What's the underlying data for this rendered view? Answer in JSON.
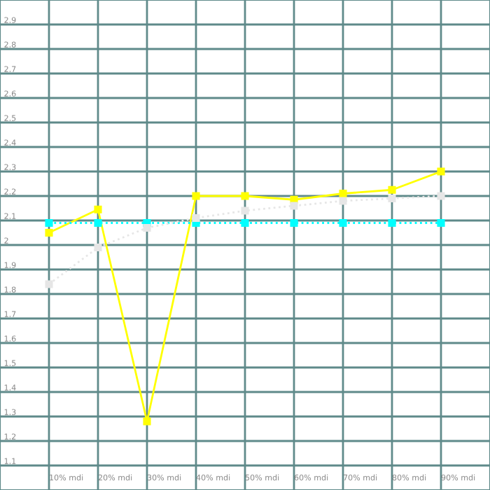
{
  "chart_data": {
    "type": "line",
    "categories": [
      "10% mdi",
      "20% mdi",
      "30% mdi",
      "40% mdi",
      "50% mdi",
      "60% mdi",
      "70% mdi",
      "80% mdi",
      "90% mdi"
    ],
    "series": [
      {
        "color": "#ffff00",
        "line_style": "solid",
        "values": [
          2.05,
          2.145,
          1.28,
          2.2,
          2.2,
          2.185,
          2.21,
          2.225,
          2.3
        ]
      },
      {
        "color": "#00ffff",
        "line_style": "dotted",
        "values": [
          2.09,
          2.09,
          2.09,
          2.09,
          2.09,
          2.09,
          2.09,
          2.09,
          2.09
        ]
      },
      {
        "color": "#e6e6e6",
        "line_style": "dotted",
        "values": [
          1.84,
          1.99,
          2.07,
          2.11,
          2.14,
          2.16,
          2.18,
          2.19,
          2.2
        ]
      }
    ],
    "ylim": [
      1.0,
      3.0
    ],
    "yticks": [
      1.1,
      1.2,
      1.3,
      1.4,
      1.5,
      1.6,
      1.7,
      1.8,
      1.9,
      2,
      2.1,
      2.2,
      2.3,
      2.4,
      2.5,
      2.6,
      2.7,
      2.8,
      2.9
    ],
    "grid": true,
    "marker": "square"
  }
}
